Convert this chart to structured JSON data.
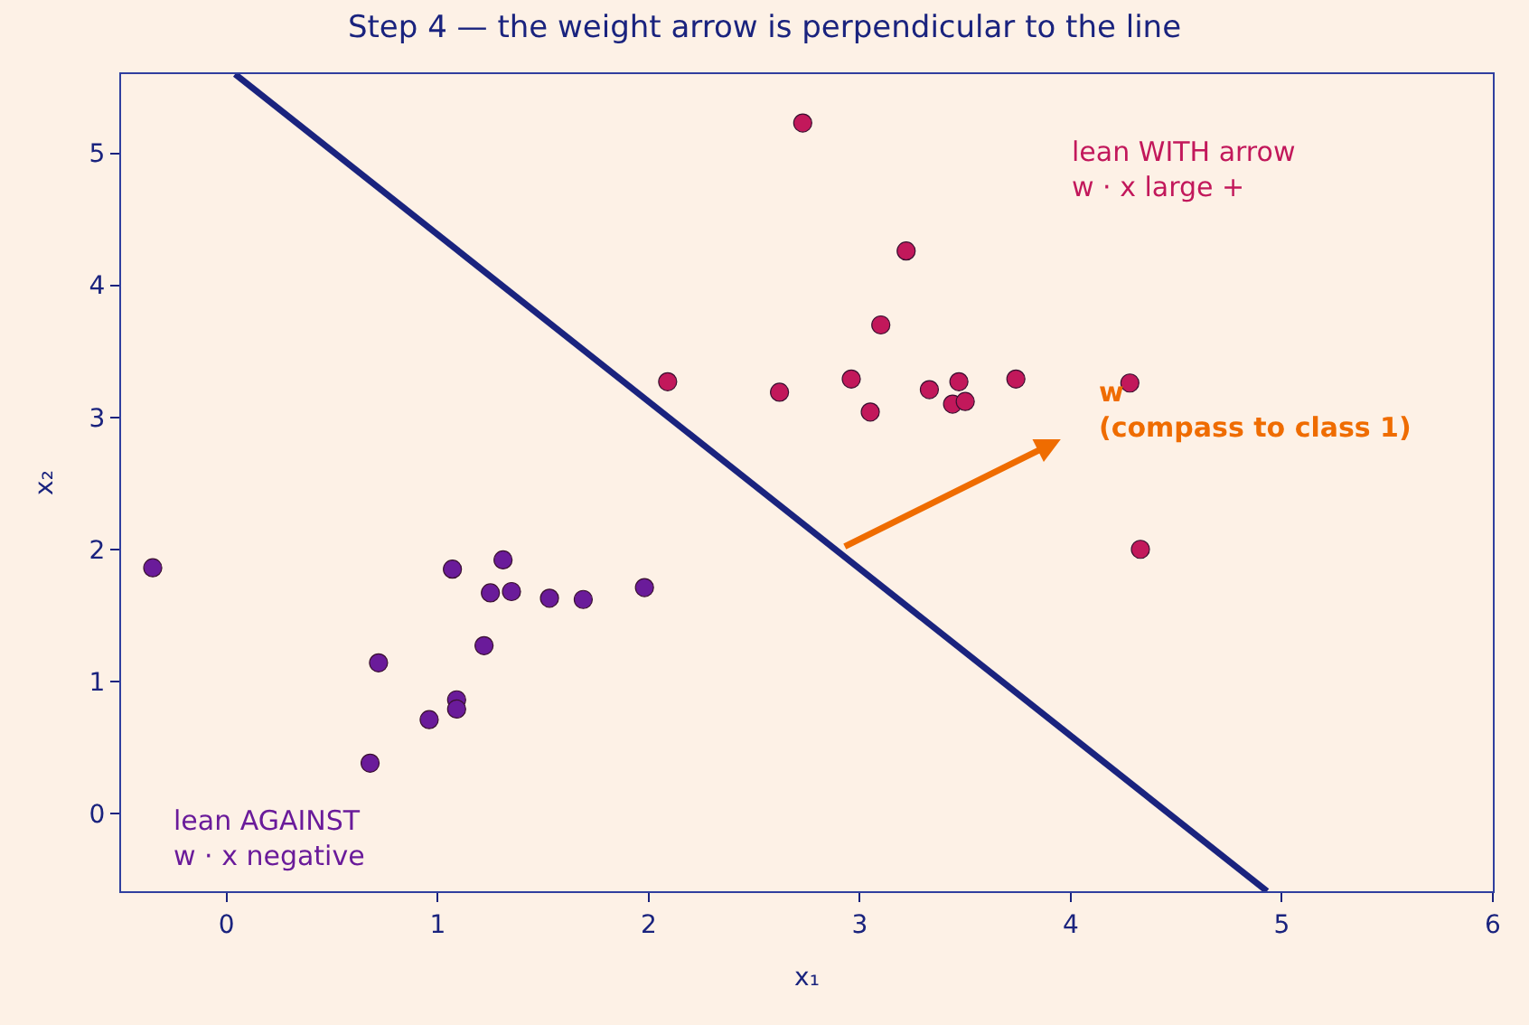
{
  "chart_data": {
    "type": "scatter",
    "title": "Step 4 — the weight arrow is perpendicular to the line",
    "xlabel": "x₁",
    "ylabel": "x₂",
    "xlim": [
      -0.5,
      6
    ],
    "ylim": [
      -0.59,
      5.6
    ],
    "xticks": [
      0,
      1,
      2,
      3,
      4,
      5,
      6
    ],
    "yticks": [
      0,
      1,
      2,
      3,
      4,
      5
    ],
    "grid": false,
    "marker": "circle",
    "series": [
      {
        "type": "line",
        "color": "#1a237e",
        "x": [
          0.04,
          4.93
        ],
        "values": [
          5.6,
          -0.59
        ],
        "marker": "none"
      },
      {
        "color": "#6a1b9a",
        "x": [
          -0.35,
          0.72,
          0.68,
          0.96,
          1.09,
          1.09,
          1.07,
          1.22,
          1.25,
          1.31,
          1.35,
          1.53,
          1.69,
          1.98
        ],
        "values": [
          1.86,
          1.14,
          0.38,
          0.71,
          0.86,
          0.79,
          1.85,
          1.27,
          1.67,
          1.92,
          1.68,
          1.63,
          1.62,
          1.71
        ]
      },
      {
        "color": "#c2185b",
        "x": [
          2.09,
          2.73,
          2.62,
          2.96,
          3.05,
          3.1,
          3.22,
          3.33,
          3.47,
          3.44,
          3.5,
          3.74,
          4.28,
          4.33
        ],
        "values": [
          3.27,
          5.23,
          3.19,
          3.29,
          3.04,
          3.7,
          4.26,
          3.21,
          3.27,
          3.1,
          3.12,
          3.29,
          3.26,
          2.0
        ]
      }
    ],
    "annotations": [
      "w\n(compass to class 1)",
      "lean WITH arrow\nw · x large +",
      "lean AGAINST\nw · x negative"
    ]
  }
}
